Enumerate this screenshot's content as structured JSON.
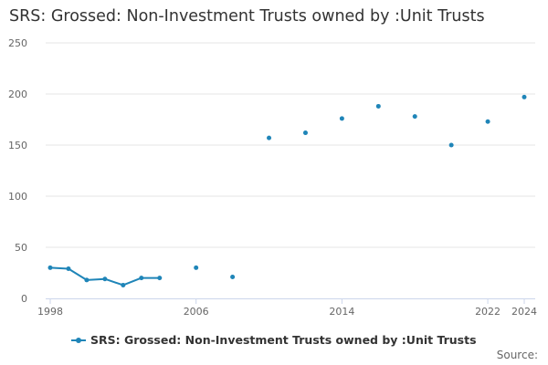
{
  "title": "SRS: Grossed: Non-Investment Trusts owned by :Unit Trusts",
  "credits": "Source:",
  "colors": {
    "series": "#1f85b8",
    "grid": "#e6e6e6",
    "axis": "#ccd6eb"
  },
  "chart_data": {
    "type": "line",
    "title": "SRS: Grossed: Non-Investment Trusts owned by :Unit Trusts",
    "xlabel": "",
    "ylabel": "",
    "xlim": [
      1998,
      2024
    ],
    "ylim": [
      0,
      250
    ],
    "x_ticks": [
      1998,
      2006,
      2014,
      2022,
      2024
    ],
    "y_ticks": [
      0,
      50,
      100,
      150,
      200,
      250
    ],
    "grid": true,
    "legend_position": "bottom",
    "series": [
      {
        "name": "SRS: Grossed: Non-Investment Trusts owned by :Unit Trusts",
        "points": [
          {
            "x": 1998,
            "y": 30
          },
          {
            "x": 1999,
            "y": 29
          },
          {
            "x": 2000,
            "y": 18
          },
          {
            "x": 2001,
            "y": 19
          },
          {
            "x": 2002,
            "y": 13
          },
          {
            "x": 2003,
            "y": 20
          },
          {
            "x": 2004,
            "y": 20
          },
          {
            "x": 2006,
            "y": 30
          },
          {
            "x": 2008,
            "y": 21
          },
          {
            "x": 2010,
            "y": 157
          },
          {
            "x": 2012,
            "y": 162
          },
          {
            "x": 2014,
            "y": 176
          },
          {
            "x": 2016,
            "y": 188
          },
          {
            "x": 2018,
            "y": 178
          },
          {
            "x": 2020,
            "y": 150
          },
          {
            "x": 2022,
            "y": 173
          },
          {
            "x": 2024,
            "y": 197
          }
        ]
      }
    ]
  }
}
